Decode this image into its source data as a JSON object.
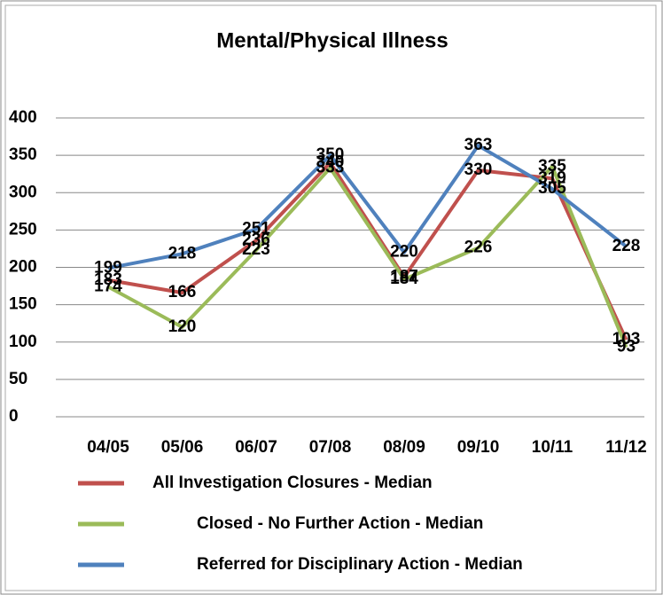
{
  "chart_data": {
    "type": "line",
    "title": "Mental/Physical Illness",
    "categories": [
      "04/05",
      "05/06",
      "06/07",
      "07/08",
      "08/09",
      "09/10",
      "10/11",
      "11/12"
    ],
    "series": [
      {
        "name": "All Investigation Closures - Median",
        "color": "#c0504d",
        "values": [
          183,
          166,
          236,
          340,
          187,
          330,
          319,
          103
        ]
      },
      {
        "name": "Closed - No Further Action - Median",
        "color": "#9bbb59",
        "values": [
          174,
          120,
          223,
          333,
          184,
          226,
          335,
          93
        ]
      },
      {
        "name": "Referred for Disciplinary Action - Median",
        "color": "#4f81bd",
        "values": [
          199,
          218,
          251,
          350,
          220,
          363,
          305,
          228
        ]
      }
    ],
    "ylim": [
      0,
      400
    ],
    "yticks": [
      0,
      50,
      100,
      150,
      200,
      250,
      300,
      350,
      400
    ],
    "grid": true
  }
}
